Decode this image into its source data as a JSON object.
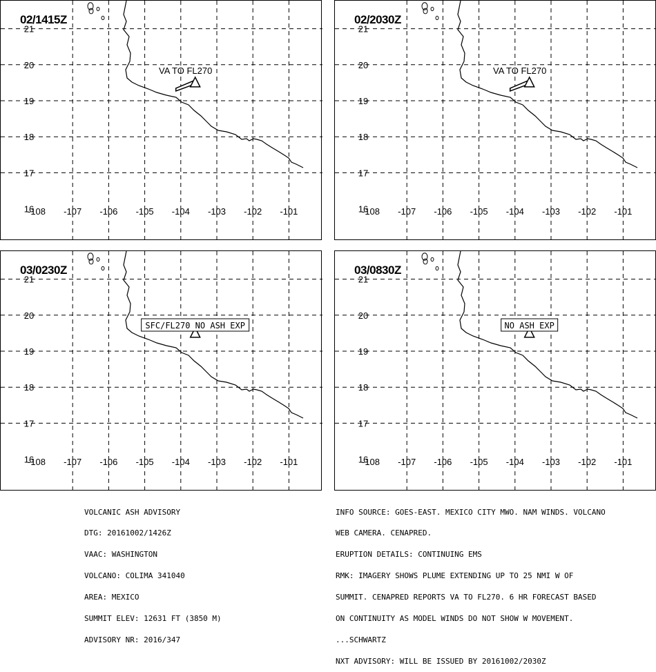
{
  "panels": [
    {
      "time": "02/1415Z",
      "label": "VA TO FL270",
      "boxed": false,
      "plume": true
    },
    {
      "time": "02/2030Z",
      "label": "VA TO FL270",
      "boxed": false,
      "plume": true
    },
    {
      "time": "03/0230Z",
      "label": "SFC/FL270 NO ASH EXP",
      "boxed": true,
      "plume": false
    },
    {
      "time": "03/0830Z",
      "label": "NO ASH EXP",
      "boxed": true,
      "plume": false
    }
  ],
  "map": {
    "lon_ticks": [
      "-108",
      "-107",
      "-106",
      "-105",
      "-104",
      "-103",
      "-102",
      "-101"
    ],
    "lat_ticks": [
      "21",
      "20",
      "19",
      "18",
      "17",
      "16"
    ],
    "lon_range": [
      -108,
      -100.6
    ],
    "lat_range": [
      16,
      21.9
    ],
    "grid": "dashed",
    "volcano": {
      "lon": -103.6,
      "lat": 19.5,
      "icon": "volcano-triangle-icon"
    },
    "colors": {
      "coast": "#000000",
      "grid": "#000000",
      "background": "#ffffff"
    }
  },
  "advisory_left": [
    "VOLCANIC ASH ADVISORY",
    "DTG: 20161002/1426Z",
    "VAAC: WASHINGTON",
    "VOLCANO: COLIMA 341040",
    "AREA: MEXICO",
    "SUMMIT ELEV: 12631 FT (3850 M)",
    "ADVISORY NR: 2016/347"
  ],
  "advisory_right": [
    "INFO SOURCE: GOES-EAST. MEXICO CITY MWO. NAM WINDS. VOLCANO",
    "WEB CAMERA. CENAPRED.",
    "ERUPTION DETAILS: CONTINUING EMS",
    "RMK: IMAGERY SHOWS PLUME EXTENDING UP TO 25 NMI W OF",
    "SUMMIT. CENAPRED REPORTS VA TO FL270. 6 HR FORECAST BASED",
    "ON CONTINUITY AS MODEL WINDS DO NOT SHOW W MOVEMENT.",
    "...SCHWARTZ",
    "NXT ADVISORY: WILL BE ISSUED BY 20161002/2030Z"
  ]
}
